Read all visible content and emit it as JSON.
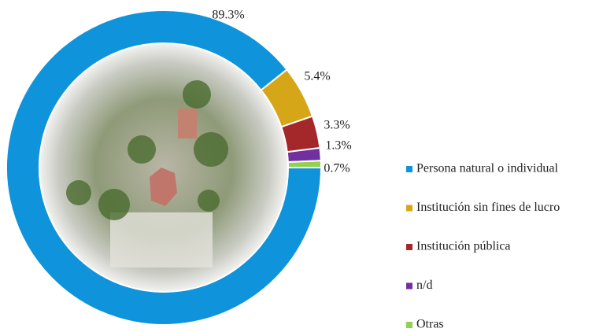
{
  "chart_data": {
    "type": "donut",
    "categories": [
      "Persona natural o individual",
      "Institución sin fines de lucro",
      "Institución pública",
      "n/d",
      "Otras"
    ],
    "values": [
      89.3,
      5.4,
      3.3,
      1.3,
      0.7
    ],
    "value_labels": [
      "89.3%",
      "5.4%",
      "3.3%",
      "1.3%",
      "0.7%"
    ],
    "colors": [
      "#0f94db",
      "#d6a619",
      "#a4282a",
      "#7030a0",
      "#92d050"
    ],
    "legend": "right"
  }
}
